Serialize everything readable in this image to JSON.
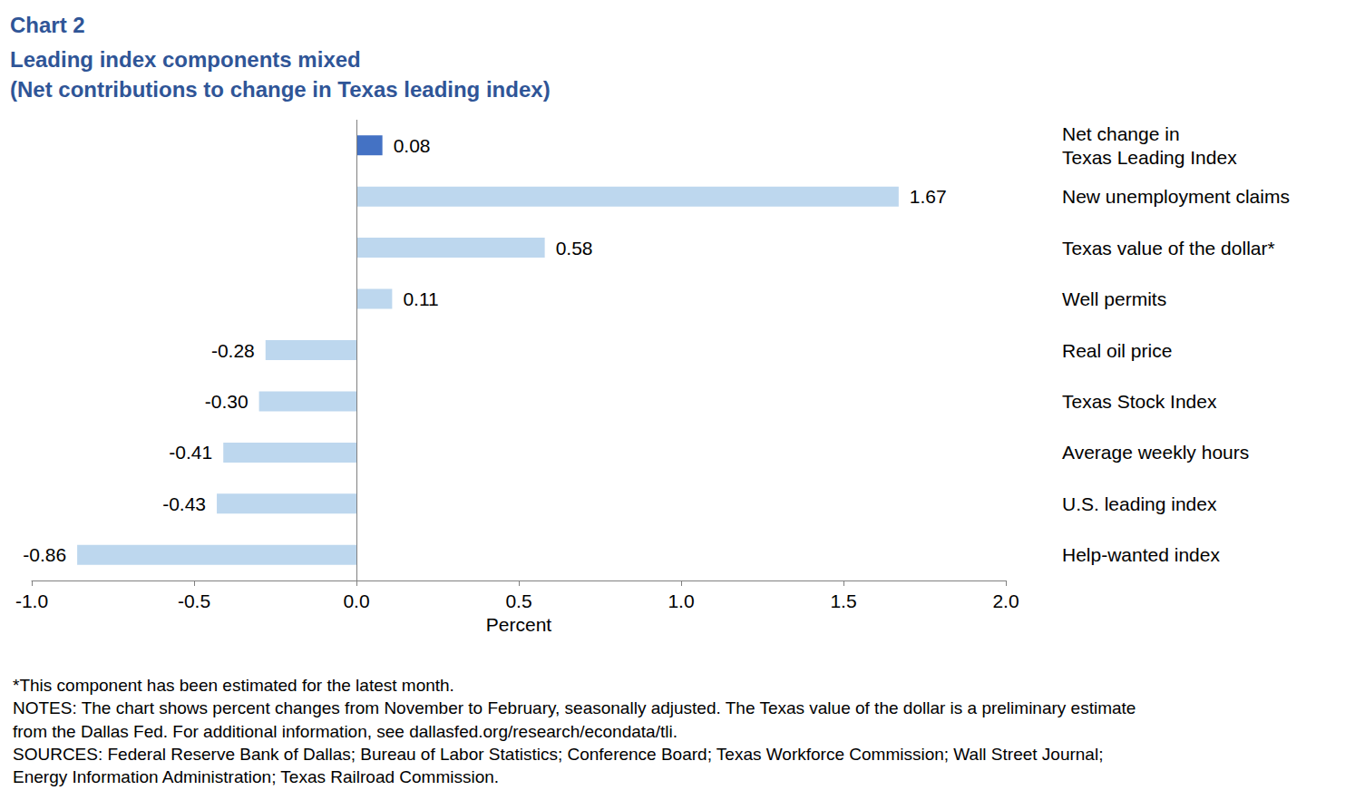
{
  "chart_data": {
    "type": "bar",
    "orientation": "horizontal",
    "title": "Chart 2",
    "subtitle": "Leading index components mixed\n(Net contributions to change in Texas leading index)",
    "x_label": "Percent",
    "categories": [
      "Net change in\nTexas Leading Index",
      "New unemployment claims",
      "Texas value of the dollar*",
      "Well permits",
      "Real oil price",
      "Texas Stock Index",
      "Average weekly hours",
      "U.S. leading index",
      "Help-wanted index"
    ],
    "values": [
      0.08,
      1.67,
      0.58,
      0.11,
      -0.28,
      -0.3,
      -0.41,
      -0.43,
      -0.86
    ],
    "value_labels": [
      "0.08",
      "1.67",
      "0.58",
      "0.11",
      "-0.28",
      "-0.30",
      "-0.41",
      "-0.43",
      "-0.86"
    ],
    "colors": [
      "#4472c4",
      "#bdd7ee",
      "#bdd7ee",
      "#bdd7ee",
      "#bdd7ee",
      "#bdd7ee",
      "#bdd7ee",
      "#bdd7ee",
      "#bdd7ee"
    ],
    "data_labels": true,
    "xlim": [
      -1,
      2
    ],
    "xticks": [
      {
        "value": -1,
        "label": "-1.0"
      },
      -0.5,
      {
        "value": 0,
        "label": "0.0"
      },
      0.5,
      {
        "value": 1,
        "label": "1.0"
      },
      1.5,
      {
        "value": 2,
        "label": "2.0"
      }
    ],
    "grid": false,
    "annotations": [
      "*This component has been estimated for the latest month.",
      "NOTES: The chart shows percent changes from November to February, seasonally adjusted. The Texas value of the dollar is a preliminary estimate",
      "from the Dallas Fed. For additional information, see dallasfed.org/research/econdata/tli.",
      "SOURCES: Federal Reserve Bank of Dallas; Bureau of Labor Statistics; Conference Board; Texas Workforce Commission; Wall Street Journal;",
      "Energy Information Administration; Texas Railroad Commission."
    ]
  }
}
